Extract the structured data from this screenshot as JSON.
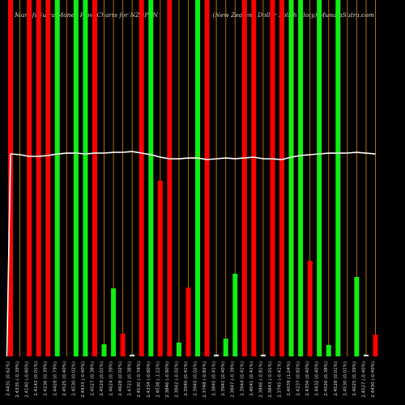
{
  "colors": {
    "background": "#000000",
    "bar_red": "#ff0000",
    "bar_green": "#11ee11",
    "bar_neutral": "#e0e0e0",
    "guide_line": "#b86e00",
    "price_line": "#ffffff",
    "text": "#dcdcdc"
  },
  "chart_data": {
    "type": "bar",
    "title": "MunafaSutra Money Flow Charts for NZDPLN",
    "subtitle": "(New Zealand Dollar Polish Zloty) MunafaSutra.com",
    "xlabel": "",
    "ylabel": "",
    "categories": [
      "2.4431 (0.62%)",
      "2.4335 (-0.39%)",
      "2.4140 (-0.80%)",
      "2.4142 (0.01%)",
      "2.4236 (0.39%)",
      "2.4428 (0.79%)",
      "2.4525 (0.40%)",
      "2.4530 (0.02%)",
      "2.4433 (-0.40%)",
      "2.4527 (0.38%)",
      "2.4529 (0.01%)",
      "2.4624 (0.39%)",
      "2.4628 (0.02%)",
      "2.4722 (0.38%)",
      "2.4530 (-0.78%)",
      "2.4334 (-0.80%)",
      "2.4038 (-1.22%)",
      "2.3846 (-0.80%)",
      "2.3842 (-0.02%)",
      "2.3940 (0.41%)",
      "2.3945 (0.02%)",
      "2.3748 (-0.82%)",
      "2.3845 (0.41%)",
      "2.3941 (0.40%)",
      "2.3847 (-0.39%)",
      "2.3944 (0.41%)",
      "2.4041 (0.41%)",
      "2.3846 (-0.81%)",
      "2.3843 (-0.01%)",
      "2.3745 (-0.41%)",
      "2.4039 (1.24%)",
      "2.4237 (0.82%)",
      "2.4334 (0.40%)",
      "2.4432 (0.40%)",
      "2.4526 (0.38%)",
      "2.4528 (0.01%)",
      "2.4530 (0.01%)",
      "2.4625 (0.39%)",
      "2.4527 (-0.40%)",
      "2.4430 (-0.40%)"
    ],
    "series": [
      {
        "type": "bar",
        "values": [
          1000,
          0,
          1000,
          1000,
          1000,
          1000,
          0,
          1000,
          1000,
          1000,
          34,
          191,
          64,
          5,
          1000,
          1000,
          493,
          1000,
          39,
          193,
          1000,
          1000,
          5,
          50,
          232,
          1000,
          1000,
          5,
          1000,
          1000,
          1000,
          1000,
          268,
          1000,
          32,
          1000,
          0,
          223,
          5,
          61
        ],
        "bar_colors": [
          "red",
          "green",
          "red",
          "red",
          "red",
          "green",
          "green",
          "green",
          "green",
          "red",
          "green",
          "green",
          "red",
          "neutral",
          "red",
          "green",
          "red",
          "red",
          "green",
          "red",
          "green",
          "red",
          "neutral",
          "green",
          "green",
          "red",
          "red",
          "neutral",
          "red",
          "red",
          "green",
          "green",
          "red",
          "green",
          "green",
          "green",
          "green",
          "green",
          "neutral",
          "red"
        ]
      },
      {
        "type": "line",
        "axis": "price",
        "values": [
          2.4431,
          2.4335,
          2.414,
          2.4142,
          2.4236,
          2.4428,
          2.4525,
          2.453,
          2.4433,
          2.4527,
          2.4529,
          2.4624,
          2.4628,
          2.4722,
          2.453,
          2.4334,
          2.4038,
          2.3846,
          2.3842,
          2.394,
          2.3945,
          2.3748,
          2.3845,
          2.3941,
          2.3847,
          2.3944,
          2.4041,
          2.3846,
          2.3843,
          2.3745,
          2.4039,
          2.4237,
          2.4334,
          2.4432,
          2.4526,
          2.4528,
          2.453,
          2.4625,
          2.4527,
          2.443
        ]
      }
    ],
    "ylim": [
      0,
      1000
    ],
    "price_ylim": [
      0,
      4.3
    ],
    "grid": false,
    "legend": "none"
  }
}
